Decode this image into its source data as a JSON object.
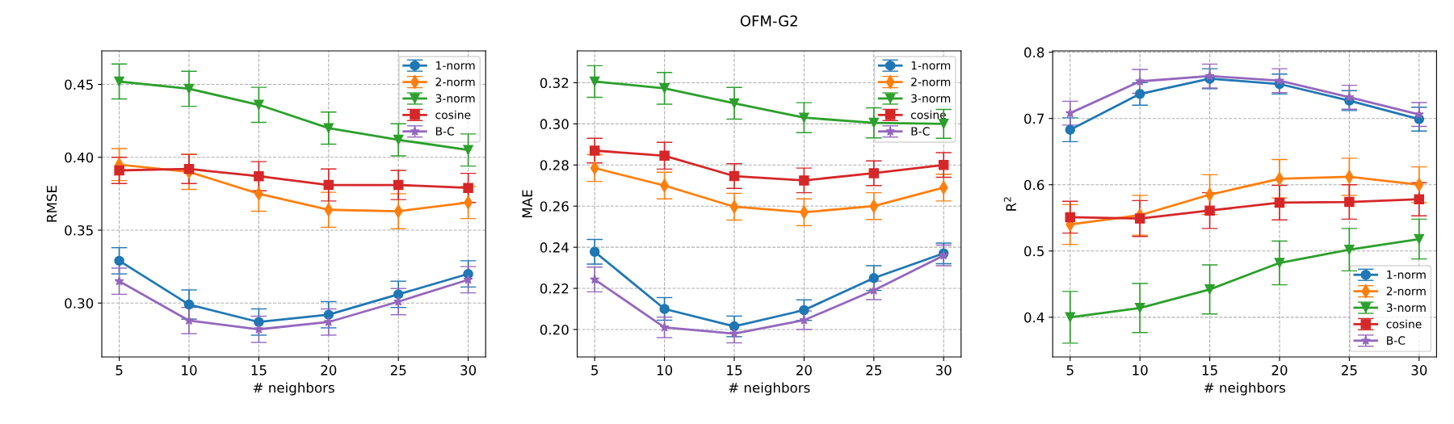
{
  "chart_data": [
    {
      "type": "line",
      "xlabel": "# neighbors",
      "ylabel": "RMSE",
      "x": [
        5,
        10,
        15,
        20,
        25,
        30
      ],
      "xlim": [
        3.75,
        31.25
      ],
      "xticks": [
        5,
        10,
        15,
        20,
        25,
        30
      ],
      "ylim": [
        0.263,
        0.473
      ],
      "yticks": [
        {
          "value": 0.3,
          "label": "0.30"
        },
        0.35,
        {
          "value": 0.4,
          "label": "0.40"
        },
        0.45
      ],
      "grid": true,
      "legend": "top right",
      "line_style": "solid",
      "series": [
        {
          "name": "1-norm",
          "color": "#1f77b4",
          "marker": "circle",
          "values": [
            0.329,
            0.299,
            0.287,
            0.292,
            0.306,
            0.32
          ],
          "errors": [
            0.009,
            0.01,
            0.009,
            0.009,
            0.009,
            0.009
          ]
        },
        {
          "name": "2-norm",
          "color": "#ff7f0e",
          "marker": "diamond",
          "values": [
            0.395,
            0.39,
            0.375,
            0.364,
            0.363,
            0.369
          ],
          "errors": [
            0.011,
            0.012,
            0.012,
            0.012,
            0.012,
            0.011
          ]
        },
        {
          "name": "3-norm",
          "color": "#2ca02c",
          "marker": "triangle",
          "values": [
            0.452,
            0.447,
            0.436,
            0.42,
            0.412,
            0.405
          ],
          "errors": [
            0.012,
            0.012,
            0.012,
            0.011,
            0.011,
            0.011
          ]
        },
        {
          "name": "cosine",
          "color": "#d62728",
          "marker": "square",
          "values": [
            0.391,
            0.392,
            0.387,
            0.381,
            0.381,
            0.379
          ],
          "errors": [
            0.009,
            0.01,
            0.01,
            0.011,
            0.01,
            0.01
          ]
        },
        {
          "name": "B-C",
          "color": "#9467bd",
          "marker": "star",
          "values": [
            0.315,
            0.288,
            0.282,
            0.287,
            0.301,
            0.316
          ],
          "errors": [
            0.009,
            0.009,
            0.009,
            0.009,
            0.009,
            0.009
          ]
        }
      ]
    },
    {
      "type": "line",
      "title": "OFM-G2",
      "xlabel": "# neighbors",
      "ylabel": "MAE",
      "x": [
        5,
        10,
        15,
        20,
        25,
        30
      ],
      "xlim": [
        3.75,
        31.25
      ],
      "xticks": [
        5,
        10,
        15,
        20,
        25,
        30
      ],
      "ylim": [
        0.1866,
        0.3355
      ],
      "yticks": [
        {
          "value": 0.2,
          "label": "0.20"
        },
        0.22,
        0.24,
        0.26,
        0.28,
        {
          "value": 0.3,
          "label": "0.30"
        },
        0.32
      ],
      "grid": true,
      "legend": "top right",
      "line_style": "solid",
      "series": [
        {
          "name": "1-norm",
          "color": "#1f77b4",
          "marker": "circle",
          "values": [
            0.2378,
            0.21,
            0.2015,
            0.2094,
            0.225,
            0.237
          ],
          "errors": [
            0.006,
            0.0055,
            0.005,
            0.005,
            0.006,
            0.005
          ]
        },
        {
          "name": "2-norm",
          "color": "#ff7f0e",
          "marker": "diamond",
          "values": [
            0.2785,
            0.27,
            0.2597,
            0.257,
            0.26,
            0.269
          ],
          "errors": [
            0.0065,
            0.0065,
            0.0065,
            0.0065,
            0.0065,
            0.0065
          ]
        },
        {
          "name": "3-norm",
          "color": "#2ca02c",
          "marker": "triangle",
          "values": [
            0.3206,
            0.3173,
            0.31,
            0.303,
            0.3005,
            0.3
          ],
          "errors": [
            0.0077,
            0.0077,
            0.0077,
            0.0073,
            0.0073,
            0.007
          ]
        },
        {
          "name": "cosine",
          "color": "#d62728",
          "marker": "square",
          "values": [
            0.287,
            0.2845,
            0.2746,
            0.2725,
            0.276,
            0.28
          ],
          "errors": [
            0.006,
            0.0065,
            0.006,
            0.006,
            0.006,
            0.006
          ]
        },
        {
          "name": "B-C",
          "color": "#9467bd",
          "marker": "star",
          "values": [
            0.2243,
            0.201,
            0.198,
            0.2045,
            0.219,
            0.236
          ],
          "errors": [
            0.006,
            0.005,
            0.0045,
            0.0045,
            0.0045,
            0.005
          ]
        }
      ]
    },
    {
      "type": "line",
      "xlabel": "# neighbors",
      "ylabel": "R$^{2}$",
      "x": [
        5,
        10,
        15,
        20,
        25,
        30
      ],
      "xlim": [
        3.75,
        31.25
      ],
      "xticks": [
        5,
        10,
        15,
        20,
        25,
        30
      ],
      "ylim": [
        0.34,
        0.802
      ],
      "yticks": [
        0.4,
        0.5,
        0.6,
        0.7,
        0.8
      ],
      "grid": true,
      "legend": "bottom right",
      "line_style": "solid",
      "series": [
        {
          "name": "1-norm",
          "color": "#1f77b4",
          "marker": "circle",
          "values": [
            0.683,
            0.737,
            0.76,
            0.752,
            0.727,
            0.699
          ],
          "errors": [
            0.018,
            0.017,
            0.015,
            0.015,
            0.015,
            0.018
          ]
        },
        {
          "name": "2-norm",
          "color": "#ff7f0e",
          "marker": "diamond",
          "values": [
            0.54,
            0.554,
            0.585,
            0.609,
            0.612,
            0.6
          ],
          "errors": [
            0.03,
            0.03,
            0.03,
            0.029,
            0.028,
            0.027
          ]
        },
        {
          "name": "3-norm",
          "color": "#2ca02c",
          "marker": "triangle",
          "values": [
            0.4,
            0.414,
            0.442,
            0.482,
            0.502,
            0.518
          ],
          "errors": [
            0.039,
            0.037,
            0.037,
            0.033,
            0.032,
            0.03
          ]
        },
        {
          "name": "cosine",
          "color": "#d62728",
          "marker": "square",
          "values": [
            0.551,
            0.549,
            0.561,
            0.573,
            0.574,
            0.578
          ],
          "errors": [
            0.024,
            0.027,
            0.027,
            0.026,
            0.026,
            0.025
          ]
        },
        {
          "name": "B-C",
          "color": "#9467bd",
          "marker": "star",
          "values": [
            0.708,
            0.756,
            0.764,
            0.757,
            0.732,
            0.706
          ],
          "errors": [
            0.018,
            0.018,
            0.018,
            0.018,
            0.018,
            0.018
          ]
        }
      ]
    }
  ]
}
